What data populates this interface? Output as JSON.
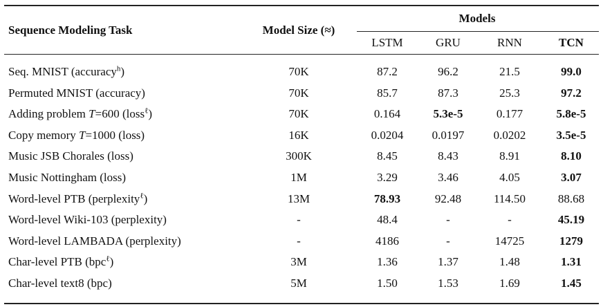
{
  "table": {
    "header": {
      "task": "Sequence Modeling Task",
      "size": "Model Size (≈)",
      "group": "Models",
      "models": [
        "LSTM",
        "GRU",
        "RNN",
        "TCN"
      ],
      "bold_models": [
        false,
        false,
        false,
        true
      ]
    },
    "rows": [
      {
        "task": [
          {
            "t": "Seq. MNIST (accuracy"
          },
          {
            "t": "h",
            "sup": true
          },
          {
            "t": ")"
          }
        ],
        "size": "70K",
        "cells": [
          {
            "text": "87.2"
          },
          {
            "text": "96.2"
          },
          {
            "text": "21.5"
          },
          {
            "text": "99.0",
            "bold": true
          }
        ]
      },
      {
        "task": [
          {
            "t": "Permuted MNIST (accuracy)"
          }
        ],
        "size": "70K",
        "cells": [
          {
            "text": "85.7"
          },
          {
            "text": "87.3"
          },
          {
            "text": "25.3"
          },
          {
            "text": "97.2",
            "bold": true
          }
        ]
      },
      {
        "task": [
          {
            "t": "Adding problem "
          },
          {
            "t": "T",
            "italic": true
          },
          {
            "t": "=600 (loss"
          },
          {
            "t": "ℓ",
            "sup": true
          },
          {
            "t": ")"
          }
        ],
        "size": "70K",
        "cells": [
          {
            "text": "0.164"
          },
          {
            "text": "5.3e-5",
            "bold": true
          },
          {
            "text": "0.177"
          },
          {
            "text": "5.8e-5",
            "bold": true
          }
        ]
      },
      {
        "task": [
          {
            "t": "Copy memory "
          },
          {
            "t": "T",
            "italic": true
          },
          {
            "t": "=1000 (loss)"
          }
        ],
        "size": "16K",
        "cells": [
          {
            "text": "0.0204"
          },
          {
            "text": "0.0197"
          },
          {
            "text": "0.0202"
          },
          {
            "text": "3.5e-5",
            "bold": true
          }
        ]
      },
      {
        "task": [
          {
            "t": "Music JSB Chorales (loss)"
          }
        ],
        "size": "300K",
        "cells": [
          {
            "text": "8.45"
          },
          {
            "text": "8.43"
          },
          {
            "text": "8.91"
          },
          {
            "text": "8.10",
            "bold": true
          }
        ]
      },
      {
        "task": [
          {
            "t": "Music Nottingham (loss)"
          }
        ],
        "size": "1M",
        "cells": [
          {
            "text": "3.29"
          },
          {
            "text": "3.46"
          },
          {
            "text": "4.05"
          },
          {
            "text": "3.07",
            "bold": true
          }
        ]
      },
      {
        "task": [
          {
            "t": "Word-level PTB (perplexity"
          },
          {
            "t": "ℓ",
            "sup": true
          },
          {
            "t": ")"
          }
        ],
        "size": "13M",
        "cells": [
          {
            "text": "78.93",
            "bold": true
          },
          {
            "text": "92.48"
          },
          {
            "text": "114.50"
          },
          {
            "text": "88.68"
          }
        ]
      },
      {
        "task": [
          {
            "t": "Word-level Wiki-103 (perplexity)"
          }
        ],
        "size": "-",
        "cells": [
          {
            "text": "48.4"
          },
          {
            "text": "-"
          },
          {
            "text": "-"
          },
          {
            "text": "45.19",
            "bold": true
          }
        ]
      },
      {
        "task": [
          {
            "t": "Word-level LAMBADA (perplexity)"
          }
        ],
        "size": "-",
        "cells": [
          {
            "text": "4186"
          },
          {
            "text": "-"
          },
          {
            "text": "14725"
          },
          {
            "text": "1279",
            "bold": true
          }
        ]
      },
      {
        "task": [
          {
            "t": "Char-level PTB (bpc"
          },
          {
            "t": "ℓ",
            "sup": true
          },
          {
            "t": ")"
          }
        ],
        "size": "3M",
        "cells": [
          {
            "text": "1.36"
          },
          {
            "text": "1.37"
          },
          {
            "text": "1.48"
          },
          {
            "text": "1.31",
            "bold": true
          }
        ]
      },
      {
        "task": [
          {
            "t": "Char-level text8 (bpc)"
          }
        ],
        "size": "5M",
        "cells": [
          {
            "text": "1.50"
          },
          {
            "text": "1.53"
          },
          {
            "text": "1.69"
          },
          {
            "text": "1.45",
            "bold": true
          }
        ]
      }
    ]
  }
}
